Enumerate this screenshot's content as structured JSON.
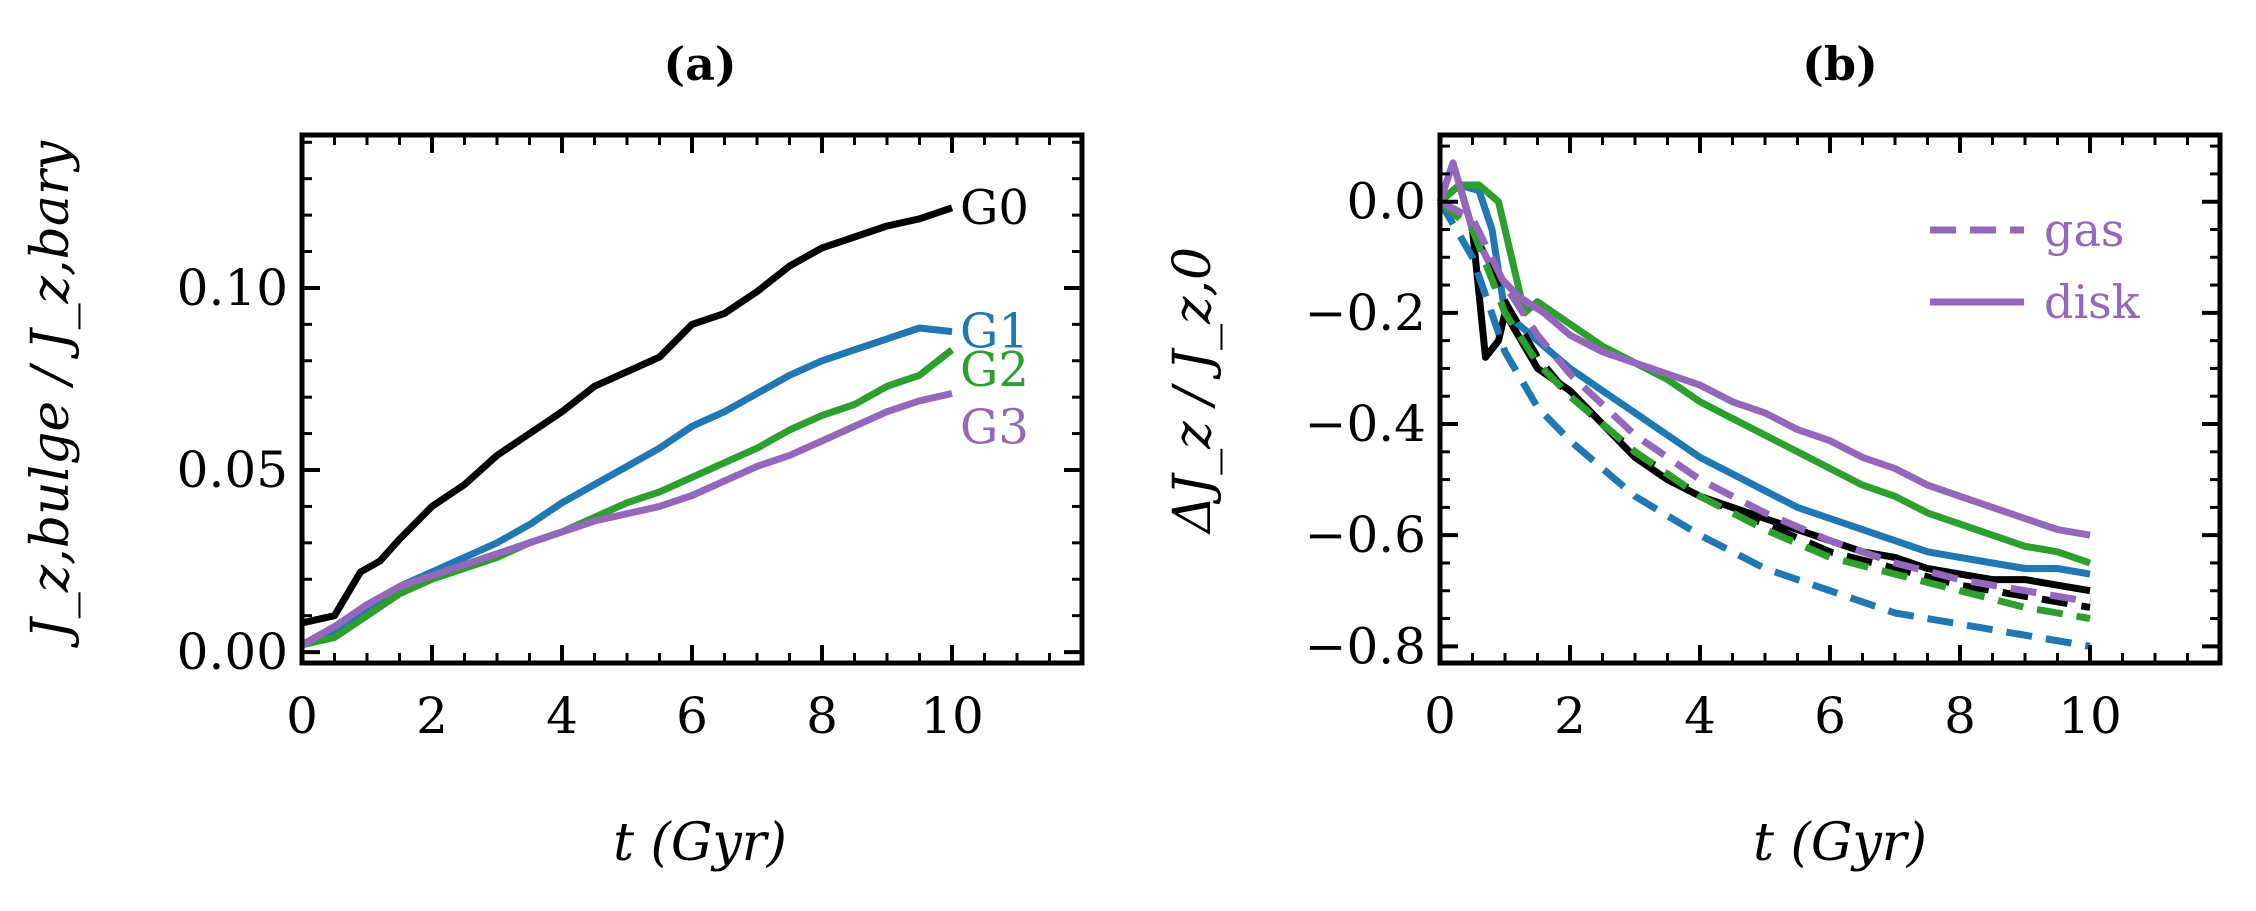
{
  "colors": {
    "G0": "#000000",
    "G1": "#1f77b4",
    "G2": "#2ca02c",
    "G3": "#9467bd"
  },
  "chart_data": [
    {
      "type": "line",
      "title": "(a)",
      "xlabel": "t (Gyr)",
      "ylabel": "J_z,bulge / J_z,bary",
      "xlim": [
        0,
        12
      ],
      "ylim": [
        -0.003,
        0.142
      ],
      "xticks": [
        0,
        2,
        4,
        6,
        8,
        10
      ],
      "xtick_labels": [
        "0",
        "2",
        "4",
        "6",
        "8",
        "10"
      ],
      "yticks": [
        0.0,
        0.05,
        0.1
      ],
      "ytick_labels": [
        "0.00",
        "0.05",
        "0.10"
      ],
      "grid": false,
      "series": [
        {
          "name": "G0",
          "color_key": "G0",
          "label": "G0",
          "x": [
            0,
            0.5,
            0.7,
            0.9,
            1.2,
            1.5,
            2,
            2.5,
            3,
            3.5,
            4,
            4.5,
            5,
            5.5,
            6,
            6.5,
            7,
            7.5,
            8,
            8.5,
            9,
            9.5,
            10
          ],
          "y": [
            0.008,
            0.01,
            0.016,
            0.022,
            0.025,
            0.031,
            0.04,
            0.046,
            0.054,
            0.06,
            0.066,
            0.073,
            0.077,
            0.081,
            0.09,
            0.093,
            0.099,
            0.106,
            0.111,
            0.114,
            0.117,
            0.119,
            0.122
          ]
        },
        {
          "name": "G1",
          "color_key": "G1",
          "label": "G1",
          "x": [
            0,
            0.5,
            1,
            1.5,
            2,
            2.5,
            3,
            3.5,
            4,
            4.5,
            5,
            5.5,
            6,
            6.5,
            7,
            7.5,
            8,
            8.5,
            9,
            9.5,
            10
          ],
          "y": [
            0.002,
            0.006,
            0.012,
            0.018,
            0.022,
            0.026,
            0.03,
            0.035,
            0.041,
            0.046,
            0.051,
            0.056,
            0.062,
            0.066,
            0.071,
            0.076,
            0.08,
            0.083,
            0.086,
            0.089,
            0.088
          ]
        },
        {
          "name": "G2",
          "color_key": "G2",
          "label": "G2",
          "x": [
            0,
            0.5,
            1,
            1.5,
            2,
            2.5,
            3,
            3.5,
            4,
            4.5,
            5,
            5.5,
            6,
            6.5,
            7,
            7.5,
            8,
            8.5,
            9,
            9.5,
            10
          ],
          "y": [
            0.002,
            0.004,
            0.01,
            0.016,
            0.02,
            0.023,
            0.026,
            0.03,
            0.033,
            0.037,
            0.041,
            0.044,
            0.048,
            0.052,
            0.056,
            0.061,
            0.065,
            0.068,
            0.073,
            0.076,
            0.083
          ]
        },
        {
          "name": "G3",
          "color_key": "G3",
          "label": "G3",
          "x": [
            0,
            0.5,
            1,
            1.5,
            2,
            2.5,
            3,
            3.5,
            4,
            4.5,
            5,
            5.5,
            6,
            6.5,
            7,
            7.5,
            8,
            8.5,
            9,
            9.5,
            10
          ],
          "y": [
            0.002,
            0.007,
            0.013,
            0.018,
            0.021,
            0.024,
            0.027,
            0.03,
            0.033,
            0.036,
            0.038,
            0.04,
            0.043,
            0.047,
            0.051,
            0.054,
            0.058,
            0.062,
            0.066,
            0.069,
            0.071
          ]
        }
      ]
    },
    {
      "type": "line",
      "title": "(b)",
      "xlabel": "t (Gyr)",
      "ylabel": "ΔJ_z / J_z,0",
      "xlim": [
        0,
        12
      ],
      "ylim": [
        -0.83,
        0.12
      ],
      "xticks": [
        0,
        2,
        4,
        6,
        8,
        10
      ],
      "xtick_labels": [
        "0",
        "2",
        "4",
        "6",
        "8",
        "10"
      ],
      "yticks": [
        0.0,
        -0.2,
        -0.4,
        -0.6,
        -0.8
      ],
      "ytick_labels": [
        "0.0",
        "−0.2",
        "−0.4",
        "−0.6",
        "−0.8"
      ],
      "grid": false,
      "legend": {
        "position": "top-right",
        "color_key": "G3",
        "entries": [
          {
            "label": "gas",
            "style": "dashed"
          },
          {
            "label": "disk",
            "style": "solid"
          }
        ]
      },
      "series": [
        {
          "name": "G0 disk",
          "color_key": "G0",
          "style": "solid",
          "x": [
            0,
            0.3,
            0.5,
            0.7,
            0.9,
            1,
            1.2,
            1.5,
            2,
            2.5,
            3,
            3.5,
            4,
            4.5,
            5,
            5.5,
            6,
            6.5,
            7,
            7.5,
            8,
            8.5,
            9,
            9.5,
            10
          ],
          "y": [
            0.0,
            0.03,
            -0.05,
            -0.28,
            -0.25,
            -0.2,
            -0.24,
            -0.3,
            -0.34,
            -0.4,
            -0.46,
            -0.5,
            -0.53,
            -0.55,
            -0.57,
            -0.59,
            -0.61,
            -0.63,
            -0.64,
            -0.66,
            -0.67,
            -0.68,
            -0.68,
            -0.69,
            -0.7
          ]
        },
        {
          "name": "G1 disk",
          "color_key": "G1",
          "style": "solid",
          "x": [
            0,
            0.3,
            0.6,
            0.8,
            1,
            1.3,
            1.7,
            2,
            2.5,
            3,
            3.5,
            4,
            4.5,
            5,
            5.5,
            6,
            6.5,
            7,
            7.5,
            8,
            8.5,
            9,
            9.5,
            10
          ],
          "y": [
            0.0,
            0.03,
            0.02,
            -0.05,
            -0.2,
            -0.23,
            -0.27,
            -0.3,
            -0.34,
            -0.38,
            -0.42,
            -0.46,
            -0.49,
            -0.52,
            -0.55,
            -0.57,
            -0.59,
            -0.61,
            -0.63,
            -0.64,
            -0.65,
            -0.66,
            -0.66,
            -0.67
          ]
        },
        {
          "name": "G2 disk",
          "color_key": "G2",
          "style": "solid",
          "x": [
            0,
            0.3,
            0.6,
            0.9,
            1.1,
            1.3,
            1.5,
            2,
            2.5,
            3,
            3.5,
            4,
            4.5,
            5,
            5.5,
            6,
            6.5,
            7,
            7.5,
            8,
            8.5,
            9,
            9.5,
            10
          ],
          "y": [
            0.0,
            0.03,
            0.03,
            0.0,
            -0.1,
            -0.2,
            -0.18,
            -0.22,
            -0.26,
            -0.29,
            -0.32,
            -0.36,
            -0.39,
            -0.42,
            -0.45,
            -0.48,
            -0.51,
            -0.53,
            -0.56,
            -0.58,
            -0.6,
            -0.62,
            -0.63,
            -0.65
          ]
        },
        {
          "name": "G3 disk",
          "color_key": "G3",
          "style": "solid",
          "x": [
            0,
            0.2,
            0.5,
            0.8,
            1.2,
            1.6,
            2,
            2.5,
            3,
            3.5,
            4,
            4.5,
            5,
            5.5,
            6,
            6.5,
            7,
            7.5,
            8,
            8.5,
            9,
            9.5,
            10
          ],
          "y": [
            0.0,
            0.07,
            -0.05,
            -0.12,
            -0.17,
            -0.2,
            -0.24,
            -0.27,
            -0.29,
            -0.31,
            -0.33,
            -0.36,
            -0.38,
            -0.41,
            -0.43,
            -0.46,
            -0.48,
            -0.51,
            -0.53,
            -0.55,
            -0.57,
            -0.59,
            -0.6
          ]
        },
        {
          "name": "G0 gas",
          "color_key": "G0",
          "style": "dashed",
          "x": [
            0,
            0.5,
            1,
            1.5,
            2,
            3,
            4,
            5,
            6,
            7,
            8,
            9,
            10
          ],
          "y": [
            0.0,
            -0.05,
            -0.18,
            -0.28,
            -0.35,
            -0.45,
            -0.53,
            -0.58,
            -0.63,
            -0.66,
            -0.69,
            -0.71,
            -0.73
          ]
        },
        {
          "name": "G1 gas",
          "color_key": "G1",
          "style": "dashed",
          "x": [
            0,
            0.5,
            1,
            1.5,
            2,
            3,
            4,
            5,
            6,
            7,
            8,
            9,
            10
          ],
          "y": [
            0.0,
            -0.1,
            -0.27,
            -0.37,
            -0.43,
            -0.53,
            -0.6,
            -0.66,
            -0.7,
            -0.74,
            -0.76,
            -0.78,
            -0.8
          ]
        },
        {
          "name": "G2 gas",
          "color_key": "G2",
          "style": "dashed",
          "x": [
            0,
            0.5,
            1,
            1.5,
            2,
            3,
            4,
            5,
            6,
            7,
            8,
            9,
            10
          ],
          "y": [
            0.0,
            -0.05,
            -0.2,
            -0.29,
            -0.35,
            -0.45,
            -0.53,
            -0.59,
            -0.64,
            -0.67,
            -0.7,
            -0.73,
            -0.75
          ]
        },
        {
          "name": "G3 gas",
          "color_key": "G3",
          "style": "dashed",
          "x": [
            0,
            0.5,
            1,
            1.5,
            2,
            3,
            4,
            5,
            6,
            7,
            8,
            9,
            10
          ],
          "y": [
            0.0,
            -0.03,
            -0.15,
            -0.24,
            -0.31,
            -0.42,
            -0.5,
            -0.56,
            -0.61,
            -0.65,
            -0.68,
            -0.7,
            -0.72
          ]
        }
      ]
    }
  ]
}
